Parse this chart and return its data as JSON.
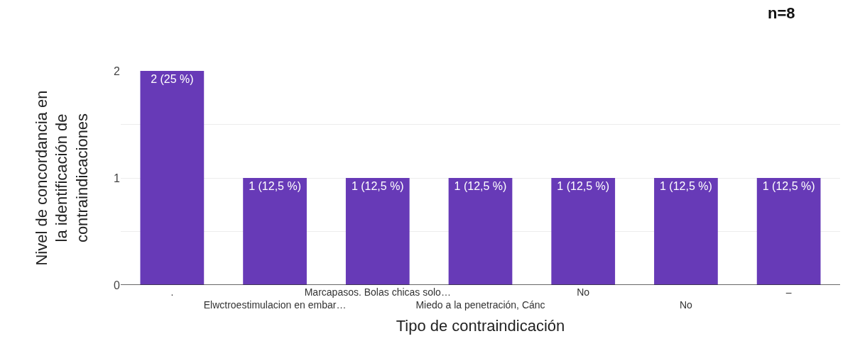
{
  "chart_data": {
    "type": "bar",
    "title": "n=8",
    "xlabel": "Tipo de contraindicación",
    "ylabel": "Nivel de concordancia en\nla identificación de\ncontraindicaciones",
    "categories": [
      ".",
      "Elwctroestimulacion en embar…",
      "Marcapasos. Bolas chicas solo…",
      "Miedo a la penetración, Cánc",
      "No",
      "No",
      "–"
    ],
    "values": [
      2,
      1,
      1,
      1,
      1,
      1,
      1
    ],
    "value_labels": [
      "2 (25 %)",
      "1 (12,5 %)",
      "1 (12,5 %)",
      "1 (12,5 %)",
      "1 (12,5 %)",
      "1 (12,5 %)",
      "1 (12,5 %)"
    ],
    "color": "#673ab7",
    "ylim": [
      0,
      2
    ],
    "yticks": [
      0,
      {
        "value": 0.5,
        "label": null
      },
      1,
      {
        "value": 1.5,
        "label": null
      },
      2
    ],
    "grid": "y"
  }
}
